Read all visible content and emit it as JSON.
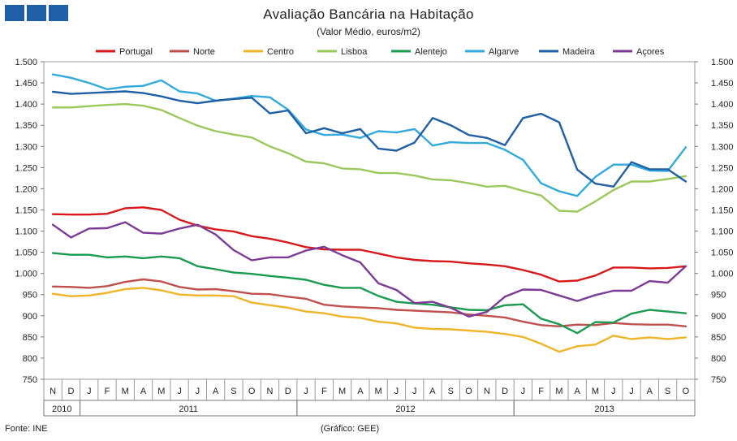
{
  "chart_data": {
    "type": "line",
    "title": "Avaliação Bancária na Habitação",
    "subtitle": "(Valor Médio, euros/m2)",
    "xlabel": "",
    "ylabel": "",
    "ylim": [
      750,
      1500
    ],
    "y_ticks": [
      "750",
      "800",
      "850",
      "900",
      "950",
      "1.000",
      "1.050",
      "1.100",
      "1.150",
      "1.200",
      "1.250",
      "1.300",
      "1.350",
      "1.400",
      "1.450",
      "1.500"
    ],
    "categories": [
      "N",
      "D",
      "J",
      "F",
      "M",
      "A",
      "M",
      "J",
      "J",
      "A",
      "S",
      "O",
      "N",
      "D",
      "J",
      "F",
      "M",
      "A",
      "M",
      "J",
      "J",
      "A",
      "S",
      "O",
      "N",
      "D",
      "J",
      "F",
      "M",
      "A",
      "M",
      "J",
      "J",
      "A",
      "S",
      "O"
    ],
    "year_groups": [
      {
        "label": "2010",
        "start": 0,
        "end": 1
      },
      {
        "label": "2011",
        "start": 2,
        "end": 13
      },
      {
        "label": "2012",
        "start": 14,
        "end": 25
      },
      {
        "label": "2013",
        "start": 26,
        "end": 35
      }
    ],
    "series": [
      {
        "name": "Portugal",
        "color": "#d7191c",
        "values": [
          1140,
          1139,
          1139,
          1141,
          1154,
          1156,
          1150,
          1127,
          1113,
          1104,
          1099,
          1088,
          1082,
          1073,
          1062,
          1057,
          1056,
          1056,
          1047,
          1038,
          1032,
          1029,
          1028,
          1024,
          1021,
          1017,
          1008,
          997,
          981,
          983,
          995,
          1014,
          1014,
          1012,
          1013,
          1017
        ]
      },
      {
        "name": "Norte",
        "color": "#c0504d",
        "values": [
          969,
          968,
          966,
          970,
          980,
          986,
          981,
          968,
          962,
          963,
          958,
          952,
          951,
          945,
          940,
          926,
          922,
          920,
          918,
          914,
          912,
          910,
          908,
          903,
          900,
          896,
          886,
          878,
          875,
          879,
          878,
          883,
          880,
          879,
          879,
          875
        ]
      },
      {
        "name": "Centro",
        "color": "#f0b428",
        "values": [
          952,
          946,
          948,
          954,
          963,
          966,
          960,
          950,
          948,
          948,
          946,
          931,
          925,
          919,
          910,
          906,
          898,
          895,
          886,
          882,
          872,
          869,
          868,
          865,
          862,
          857,
          850,
          834,
          815,
          828,
          832,
          853,
          845,
          849,
          845,
          849
        ]
      },
      {
        "name": "Lisboa",
        "color": "#9bc85a",
        "values": [
          1392,
          1392,
          1395,
          1398,
          1400,
          1396,
          1386,
          1367,
          1349,
          1336,
          1328,
          1321,
          1300,
          1284,
          1264,
          1260,
          1248,
          1246,
          1237,
          1237,
          1231,
          1222,
          1220,
          1213,
          1205,
          1207,
          1195,
          1184,
          1148,
          1146,
          1170,
          1197,
          1217,
          1217,
          1223,
          1230
        ]
      },
      {
        "name": "Alentejo",
        "color": "#1a9b50",
        "values": [
          1048,
          1044,
          1044,
          1038,
          1040,
          1036,
          1040,
          1036,
          1017,
          1010,
          1002,
          999,
          994,
          990,
          985,
          973,
          966,
          966,
          947,
          933,
          929,
          926,
          920,
          914,
          913,
          925,
          927,
          893,
          880,
          859,
          885,
          884,
          905,
          914,
          910,
          906
        ]
      },
      {
        "name": "Algarve",
        "color": "#33aadd",
        "values": [
          1470,
          1462,
          1450,
          1435,
          1441,
          1443,
          1456,
          1430,
          1425,
          1408,
          1413,
          1419,
          1416,
          1387,
          1340,
          1327,
          1328,
          1320,
          1336,
          1333,
          1341,
          1302,
          1310,
          1308,
          1308,
          1292,
          1268,
          1213,
          1194,
          1183,
          1228,
          1257,
          1257,
          1243,
          1242,
          1298
        ]
      },
      {
        "name": "Madeira",
        "color": "#1f5fa8",
        "values": [
          1429,
          1424,
          1426,
          1428,
          1430,
          1426,
          1418,
          1408,
          1402,
          1408,
          1412,
          1415,
          1378,
          1385,
          1331,
          1343,
          1331,
          1341,
          1295,
          1290,
          1309,
          1367,
          1350,
          1327,
          1320,
          1303,
          1367,
          1377,
          1357,
          1245,
          1212,
          1205,
          1263,
          1246,
          1246,
          1217
        ]
      },
      {
        "name": "Açores",
        "color": "#7b3a96",
        "values": [
          1115,
          1085,
          1106,
          1107,
          1121,
          1096,
          1094,
          1106,
          1115,
          1092,
          1055,
          1031,
          1038,
          1038,
          1054,
          1063,
          1043,
          1026,
          977,
          961,
          930,
          933,
          919,
          898,
          909,
          945,
          962,
          961,
          948,
          935,
          949,
          959,
          959,
          982,
          978,
          1017
        ]
      }
    ]
  },
  "footer": {
    "source": "Fonte: INE",
    "credit": "(Gráfico: GEE)"
  }
}
